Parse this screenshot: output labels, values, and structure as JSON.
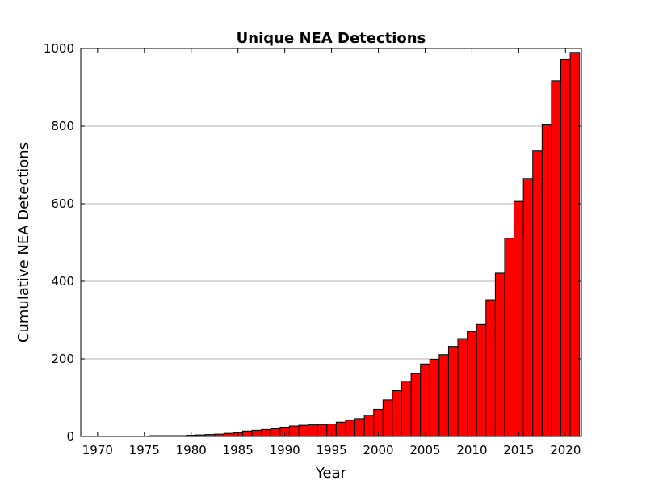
{
  "chart_data": {
    "type": "bar",
    "title": "Unique NEA Detections",
    "xlabel": "Year",
    "ylabel": "Cumulative NEA Detections",
    "xlim": [
      1968.2,
      2021.7
    ],
    "ylim": [
      0,
      1000
    ],
    "grid": "horizontal",
    "legend": "none",
    "x_ticks": [
      1970,
      1975,
      1980,
      1985,
      1990,
      1995,
      2000,
      2005,
      2010,
      2015,
      2020
    ],
    "y_ticks": [
      0,
      200,
      400,
      600,
      800,
      1000
    ],
    "bar_color": "#ff0000",
    "edge_color": "#000000",
    "x": [
      1970,
      1971,
      1972,
      1973,
      1974,
      1975,
      1976,
      1977,
      1978,
      1979,
      1980,
      1981,
      1982,
      1983,
      1984,
      1985,
      1986,
      1987,
      1988,
      1989,
      1990,
      1991,
      1992,
      1993,
      1994,
      1995,
      1996,
      1997,
      1998,
      1999,
      2000,
      2001,
      2002,
      2003,
      2004,
      2005,
      2006,
      2007,
      2008,
      2009,
      2010,
      2011,
      2012,
      2013,
      2014,
      2015,
      2016,
      2017,
      2018,
      2019,
      2020,
      2021
    ],
    "values": [
      0,
      0,
      1,
      1,
      1,
      1,
      2,
      2,
      2,
      2,
      3,
      4,
      5,
      6,
      8,
      10,
      14,
      16,
      18,
      20,
      24,
      27,
      29,
      30,
      31,
      32,
      37,
      42,
      46,
      55,
      70,
      94,
      118,
      142,
      162,
      187,
      199,
      211,
      232,
      252,
      270,
      289,
      352,
      421,
      511,
      606,
      665,
      736,
      803,
      917,
      972,
      990
    ]
  }
}
